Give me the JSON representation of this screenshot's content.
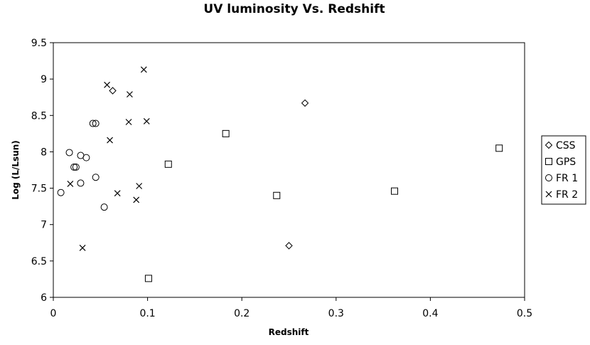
{
  "chart_data": {
    "type": "scatter",
    "title": "UV luminosity Vs. Redshift",
    "xlabel": "Redshift",
    "ylabel": "Log (L/Lsun)",
    "xlim": [
      0,
      0.5
    ],
    "ylim": [
      6,
      9.5
    ],
    "x_ticks": [
      "0",
      "0.1",
      "0.2",
      "0.3",
      "0.4",
      "0.5"
    ],
    "y_ticks": [
      "6",
      "6.5",
      "7",
      "7.5",
      "8",
      "8.5",
      "9",
      "9.5"
    ],
    "grid": false,
    "legend_position": "right",
    "series": [
      {
        "name": "CSS",
        "marker": "diamond",
        "points": [
          {
            "x": 0.063,
            "y": 8.84
          },
          {
            "x": 0.267,
            "y": 8.67
          },
          {
            "x": 0.25,
            "y": 6.71
          }
        ]
      },
      {
        "name": "GPS",
        "marker": "square",
        "points": [
          {
            "x": 0.183,
            "y": 8.25
          },
          {
            "x": 0.122,
            "y": 7.83
          },
          {
            "x": 0.237,
            "y": 7.4
          },
          {
            "x": 0.362,
            "y": 7.46
          },
          {
            "x": 0.473,
            "y": 8.05
          },
          {
            "x": 0.101,
            "y": 6.26
          }
        ]
      },
      {
        "name": "FR 1",
        "marker": "circle",
        "points": [
          {
            "x": 0.017,
            "y": 7.99
          },
          {
            "x": 0.029,
            "y": 7.95
          },
          {
            "x": 0.035,
            "y": 7.92
          },
          {
            "x": 0.022,
            "y": 7.79
          },
          {
            "x": 0.024,
            "y": 7.79
          },
          {
            "x": 0.042,
            "y": 8.39
          },
          {
            "x": 0.045,
            "y": 8.39
          },
          {
            "x": 0.045,
            "y": 7.65
          },
          {
            "x": 0.029,
            "y": 7.57
          },
          {
            "x": 0.008,
            "y": 7.44
          },
          {
            "x": 0.054,
            "y": 7.24
          }
        ]
      },
      {
        "name": "FR 2",
        "marker": "x",
        "points": [
          {
            "x": 0.096,
            "y": 9.13
          },
          {
            "x": 0.057,
            "y": 8.92
          },
          {
            "x": 0.081,
            "y": 8.79
          },
          {
            "x": 0.08,
            "y": 8.41
          },
          {
            "x": 0.099,
            "y": 8.42
          },
          {
            "x": 0.06,
            "y": 8.16
          },
          {
            "x": 0.018,
            "y": 7.56
          },
          {
            "x": 0.068,
            "y": 7.43
          },
          {
            "x": 0.091,
            "y": 7.53
          },
          {
            "x": 0.088,
            "y": 7.34
          },
          {
            "x": 0.031,
            "y": 6.68
          }
        ]
      }
    ]
  }
}
